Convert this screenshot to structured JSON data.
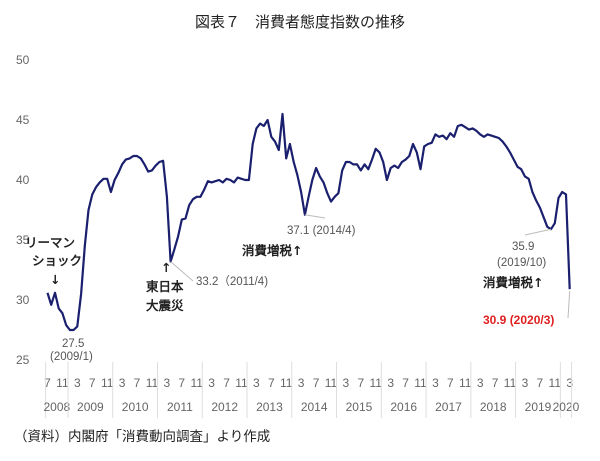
{
  "chart_data": {
    "type": "line",
    "title": "図表７　消費者態度指数の推移",
    "source": "（資料）内閣府「消費動向調査」より作成",
    "start": "2008/7",
    "end": "2020/3",
    "ylim": [
      25,
      50
    ],
    "yticks": [
      "25",
      "30",
      "35",
      "40",
      "45",
      "50"
    ],
    "month_ticks": [
      "7",
      "11",
      "3"
    ],
    "years": [
      "2008",
      "2009",
      "2010",
      "2011",
      "2012",
      "2013",
      "2014",
      "2015",
      "2016",
      "2017",
      "2018",
      "2019",
      "2020"
    ],
    "series": [
      {
        "name": "消費者態度指数",
        "color": "#1a1f6e",
        "values": [
          30.6,
          29.6,
          30.6,
          29.3,
          28.9,
          27.9,
          27.5,
          27.5,
          27.8,
          30.5,
          34.5,
          37.5,
          38.8,
          39.4,
          39.8,
          40.1,
          40.1,
          39.0,
          40.0,
          40.6,
          41.3,
          41.7,
          41.8,
          42.0,
          42.0,
          41.8,
          41.3,
          40.7,
          40.8,
          41.2,
          41.5,
          41.6,
          38.6,
          33.2,
          34.2,
          35.3,
          36.7,
          36.8,
          37.9,
          38.4,
          38.6,
          38.6,
          39.2,
          39.9,
          39.8,
          39.9,
          40.0,
          39.8,
          40.1,
          40.0,
          39.8,
          40.2,
          40.1,
          40.0,
          40.0,
          43.0,
          44.3,
          44.7,
          44.5,
          45.0,
          43.6,
          43.2,
          42.5,
          45.5,
          41.8,
          43.0,
          41.5,
          40.4,
          39.0,
          37.1,
          38.6,
          40.0,
          41.0,
          40.3,
          39.8,
          38.9,
          38.2,
          38.6,
          38.9,
          40.8,
          41.5,
          41.5,
          41.3,
          41.3,
          40.8,
          41.3,
          40.9,
          41.7,
          42.6,
          42.3,
          41.5,
          40.0,
          41.0,
          41.2,
          41.0,
          41.5,
          41.7,
          42.0,
          43.0,
          42.3,
          40.9,
          42.8,
          43.0,
          43.1,
          43.8,
          43.6,
          43.7,
          43.4,
          43.9,
          43.6,
          44.5,
          44.6,
          44.4,
          44.2,
          44.3,
          44.1,
          43.8,
          43.6,
          43.8,
          43.7,
          43.6,
          43.5,
          43.2,
          42.8,
          42.3,
          41.7,
          41.1,
          40.9,
          40.3,
          40.1,
          39.0,
          38.3,
          37.7,
          36.9,
          36.1,
          35.9,
          36.4,
          38.5,
          39.0,
          38.8,
          30.9
        ]
      }
    ],
    "annotations": {
      "lehman_1": "リーマン",
      "lehman_2": "ショック",
      "arrow_down": "↓",
      "low2009_value": "27.5",
      "low2009_date": "(2009/1)",
      "quake_arrow": "↑",
      "quake_1": "東日本",
      "quake_2": "大震災",
      "low2011": "33.2（2011/4)",
      "low2014": "37.1 (2014/4)",
      "tax1": "消費増税↑",
      "low2019_value": "35.9",
      "low2019_date": "(2019/10)",
      "tax2": "消費増税↑",
      "last": "30.9 (2020/3)"
    }
  }
}
